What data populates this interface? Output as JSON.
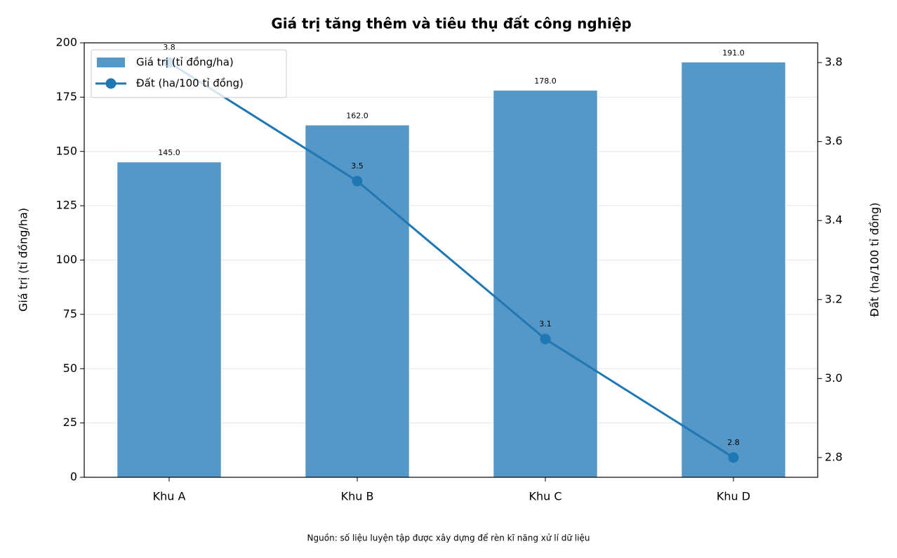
{
  "chart_data": {
    "type": "bar",
    "title": "Giá trị tăng thêm và tiêu thụ đất công nghiệp",
    "y_label": "Giá trị (tỉ đồng/ha)",
    "y2_label": "Đất (ha/100 tỉ đồng)",
    "source": "Nguồn: số liệu luyện tập được xây dựng để rèn kĩ năng xử lí dữ liệu",
    "categories": [
      "Khu A",
      "Khu B",
      "Khu C",
      "Khu D"
    ],
    "series": [
      {
        "name": "Giá trị (tỉ đồng/ha)",
        "type": "bar",
        "color": "#5597c6",
        "values": [
          145,
          162,
          178,
          191
        ],
        "value_labels": [
          "145.0",
          "162.0",
          "178.0",
          "191.0"
        ]
      },
      {
        "name": "Đất (ha/100 tỉ đồng)",
        "type": "line",
        "axis": "y2",
        "color": "#1f77b4",
        "values": [
          3.8,
          3.5,
          3.1,
          2.8
        ]
      }
    ],
    "ylim": [
      0,
      200
    ],
    "yticks": [
      0,
      25,
      50,
      75,
      100,
      125,
      150,
      175,
      200
    ],
    "y2lim": [
      2.75,
      3.85
    ],
    "y2ticks": [
      2.8,
      {
        "value": 3,
        "label": "3.0"
      },
      3.2,
      3.4,
      3.6,
      3.8
    ],
    "grid": true,
    "legend": "upper-left"
  }
}
